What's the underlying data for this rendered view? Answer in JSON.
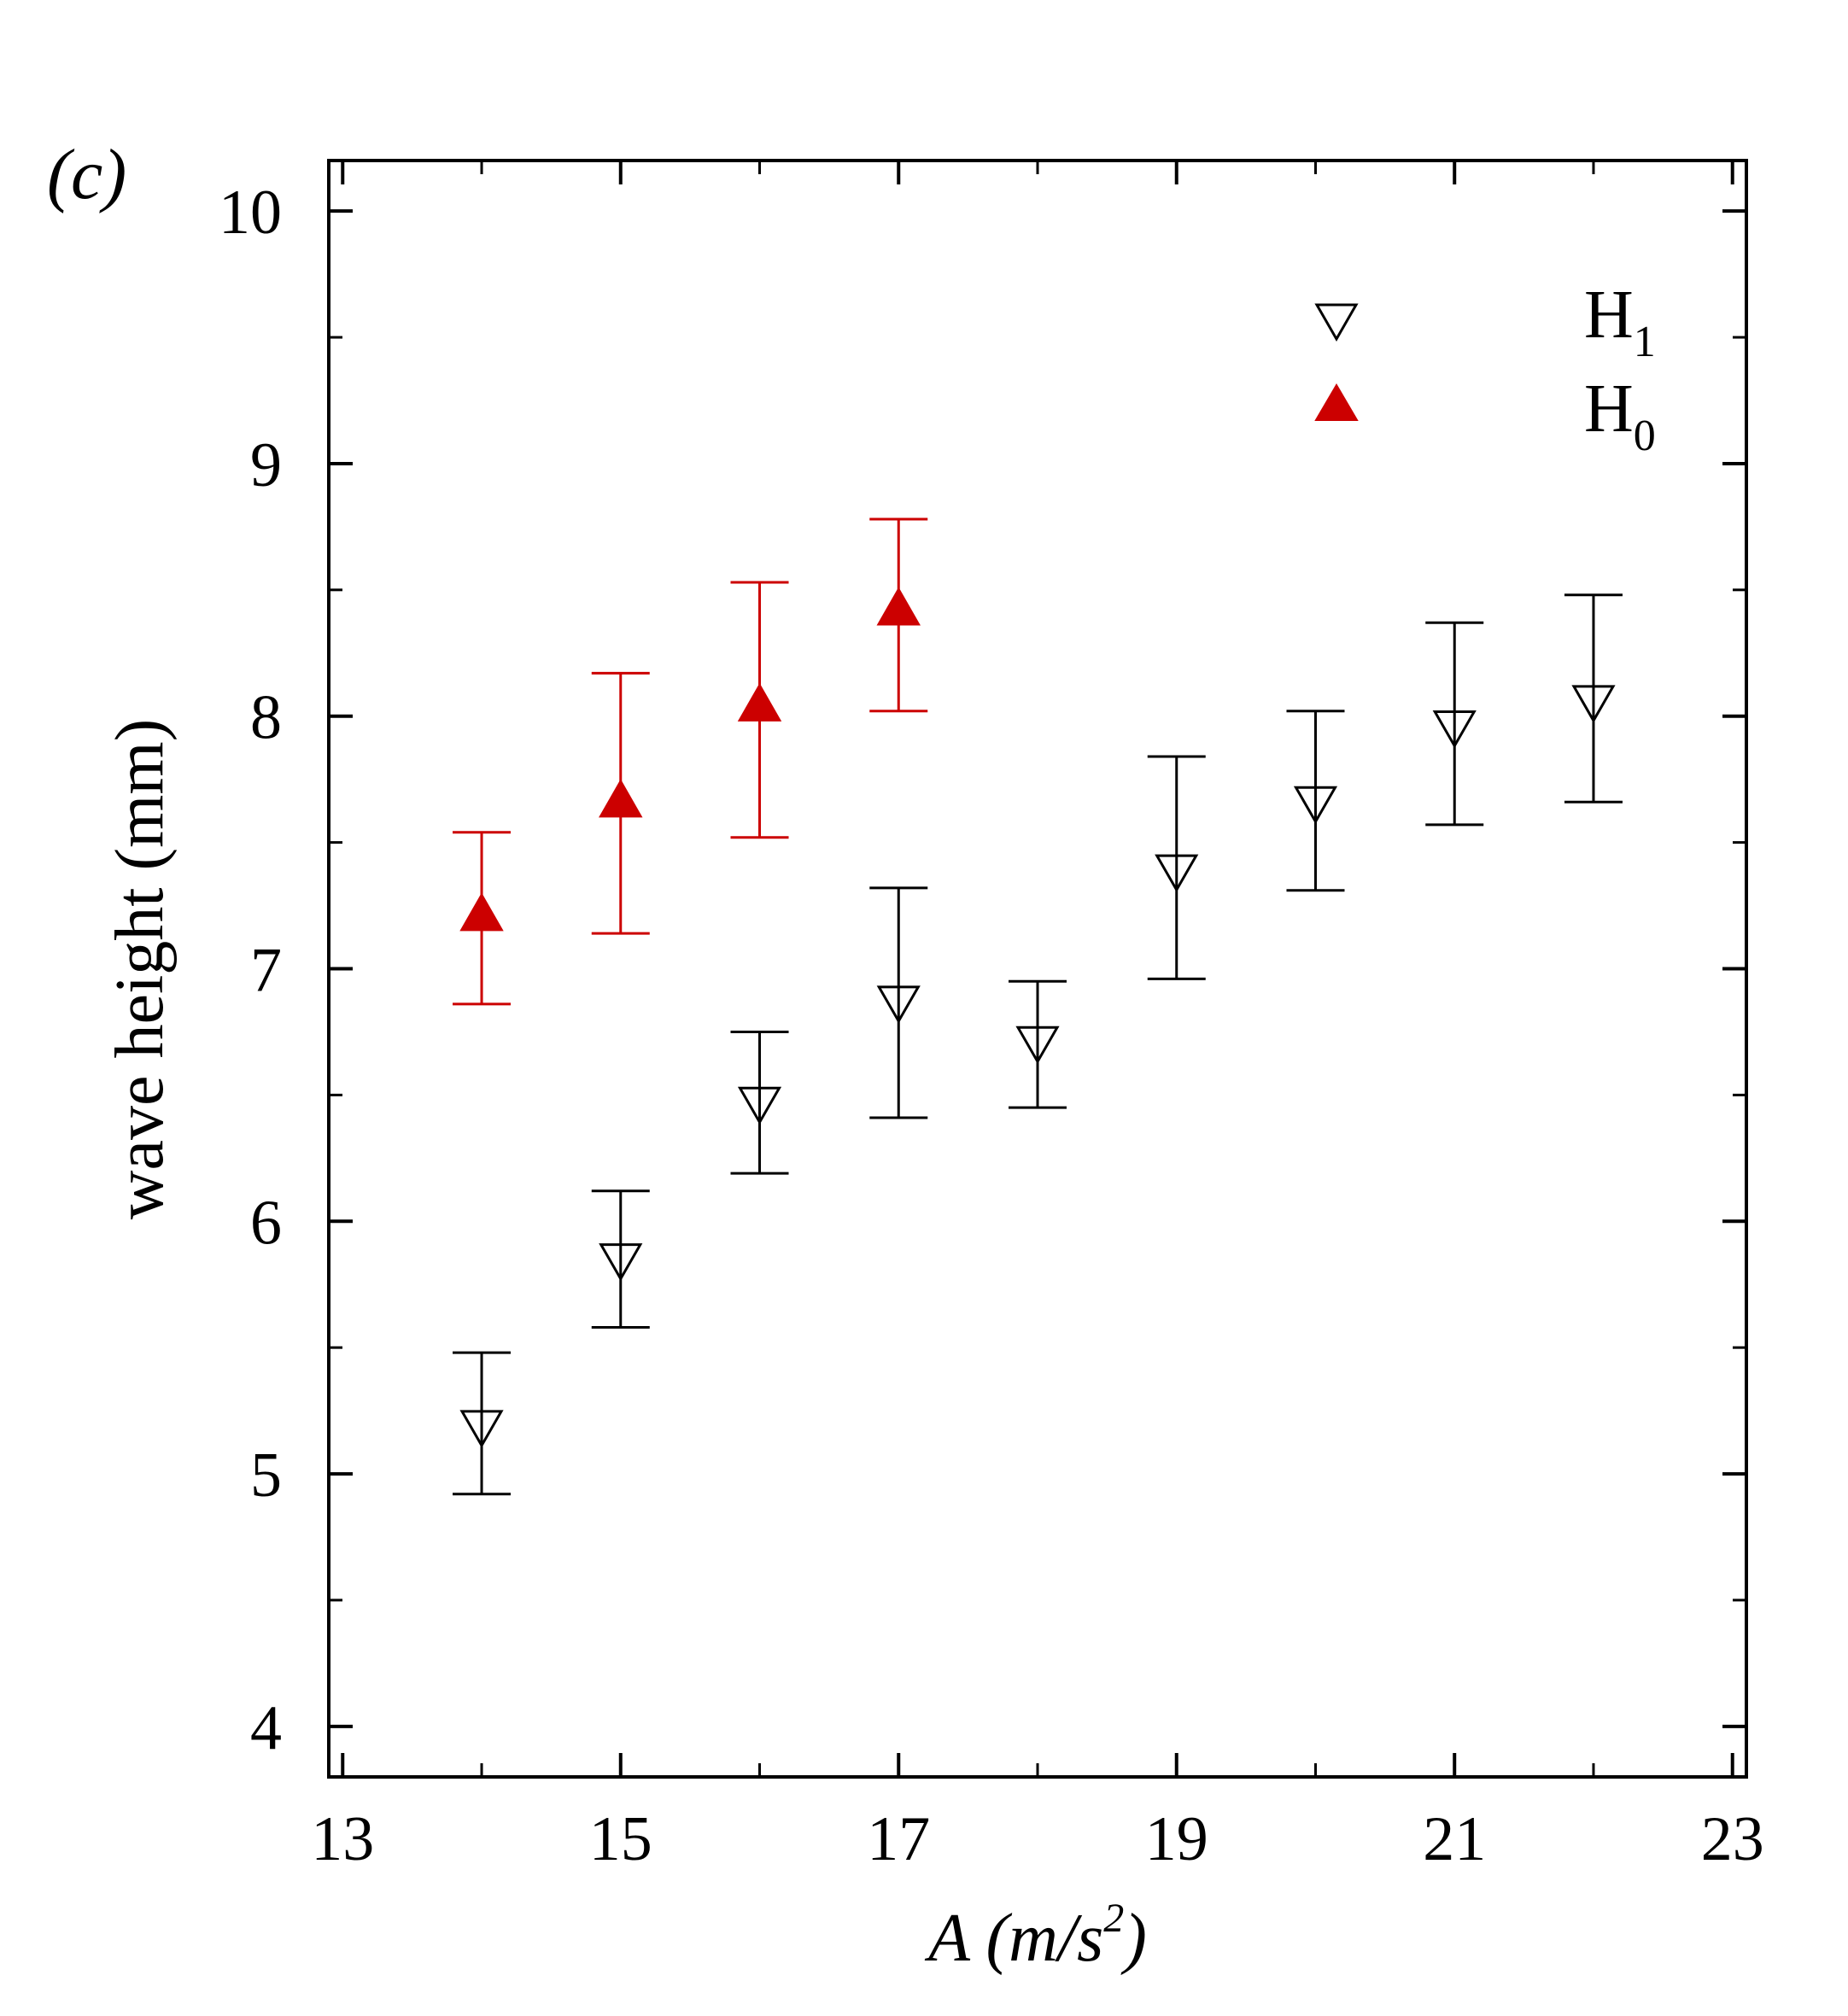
{
  "panel_label": "(c)",
  "colors": {
    "H1": "#000000",
    "H0": "#cc0000"
  },
  "chart_data": {
    "type": "scatter",
    "title": "",
    "xlabel": {
      "prefix": "A",
      "open": " (m/s",
      "superscript": "2",
      "close": ")"
    },
    "ylabel": "wave height (mm)",
    "xlim": [
      12.9,
      23.1
    ],
    "ylim": [
      3.8,
      10.2
    ],
    "xticks": [
      13,
      15,
      17,
      19,
      21,
      23
    ],
    "xtick_labels": [
      "13",
      "15",
      "17",
      "19",
      "21",
      "23"
    ],
    "yticks": [
      4,
      5,
      6,
      7,
      8,
      9,
      10
    ],
    "ytick_labels": [
      "4",
      "5",
      "6",
      "7",
      "8",
      "9",
      "10"
    ],
    "grid": false,
    "legend_position": "top-right",
    "series": [
      {
        "name": "H1",
        "label_main": "H",
        "label_sub": "1",
        "marker": "triangle-down-open",
        "color": "#000000",
        "points": [
          {
            "x": 14,
            "y": 5.18,
            "err_low": 4.92,
            "err_high": 5.48
          },
          {
            "x": 15,
            "y": 5.84,
            "err_low": 5.58,
            "err_high": 6.12
          },
          {
            "x": 16,
            "y": 6.46,
            "err_low": 6.19,
            "err_high": 6.75
          },
          {
            "x": 17,
            "y": 6.86,
            "err_low": 6.41,
            "err_high": 7.32
          },
          {
            "x": 18,
            "y": 6.7,
            "err_low": 6.45,
            "err_high": 6.95
          },
          {
            "x": 19,
            "y": 7.38,
            "err_low": 6.96,
            "err_high": 7.84
          },
          {
            "x": 20,
            "y": 7.65,
            "err_low": 7.31,
            "err_high": 8.02
          },
          {
            "x": 21,
            "y": 7.95,
            "err_low": 7.57,
            "err_high": 8.37
          },
          {
            "x": 22,
            "y": 8.05,
            "err_low": 7.66,
            "err_high": 8.48
          }
        ]
      },
      {
        "name": "H0",
        "label_main": "H",
        "label_sub": "0",
        "marker": "triangle-up-filled",
        "color": "#cc0000",
        "points": [
          {
            "x": 14,
            "y": 7.22,
            "err_low": 6.86,
            "err_high": 7.54
          },
          {
            "x": 15,
            "y": 7.67,
            "err_low": 7.14,
            "err_high": 8.17
          },
          {
            "x": 16,
            "y": 8.05,
            "err_low": 7.52,
            "err_high": 8.53
          },
          {
            "x": 17,
            "y": 8.43,
            "err_low": 8.02,
            "err_high": 8.78
          }
        ]
      }
    ]
  }
}
